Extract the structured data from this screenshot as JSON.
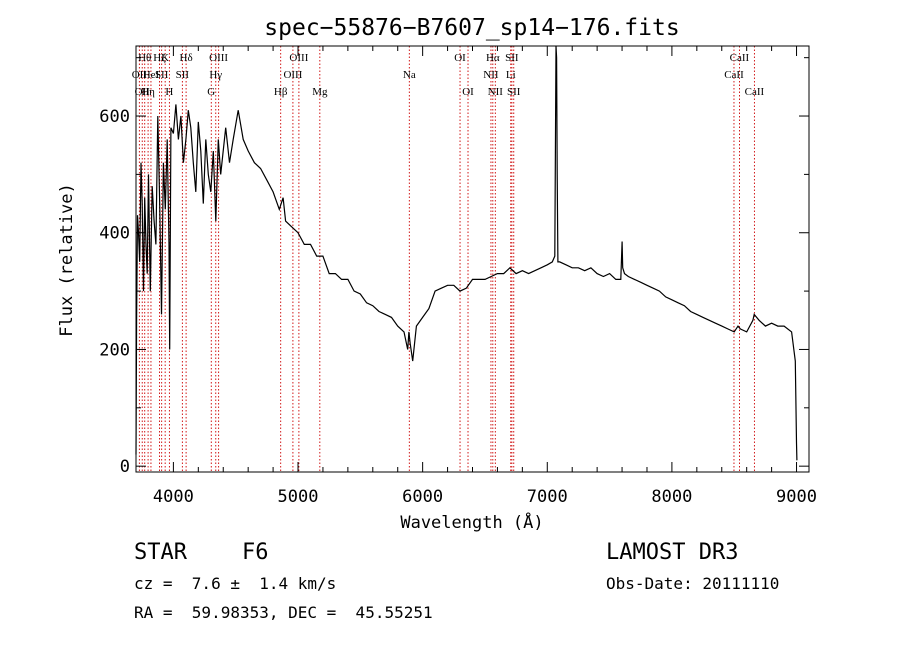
{
  "chart_data": {
    "type": "line",
    "title": "spec−55876−B7607_sp14−176.fits",
    "xlabel": "Wavelength (Å)",
    "ylabel": "Flux (relative)",
    "xlim": [
      3700,
      9100
    ],
    "ylim": [
      -10,
      720
    ],
    "x_ticks": [
      4000,
      5000,
      6000,
      7000,
      8000,
      9000
    ],
    "y_ticks": [
      0,
      200,
      400,
      600
    ],
    "grid": false,
    "series": [
      {
        "name": "spectrum",
        "x": [
          3700,
          3705,
          3712,
          3720,
          3730,
          3740,
          3750,
          3760,
          3770,
          3780,
          3790,
          3800,
          3815,
          3830,
          3845,
          3860,
          3875,
          3890,
          3905,
          3920,
          3935,
          3950,
          3965,
          3970,
          3980,
          4000,
          4020,
          4040,
          4060,
          4080,
          4100,
          4120,
          4140,
          4160,
          4180,
          4200,
          4220,
          4240,
          4260,
          4280,
          4300,
          4320,
          4340,
          4360,
          4380,
          4400,
          4420,
          4450,
          4480,
          4520,
          4560,
          4600,
          4650,
          4700,
          4750,
          4800,
          4850,
          4880,
          4900,
          4950,
          5000,
          5050,
          5100,
          5150,
          5200,
          5250,
          5300,
          5350,
          5400,
          5450,
          5500,
          5550,
          5600,
          5650,
          5700,
          5750,
          5800,
          5850,
          5880,
          5890,
          5900,
          5920,
          5950,
          6000,
          6050,
          6100,
          6150,
          6200,
          6250,
          6300,
          6350,
          6400,
          6450,
          6500,
          6550,
          6600,
          6650,
          6700,
          6750,
          6800,
          6850,
          6900,
          6950,
          7000,
          7040,
          7060,
          7070,
          7075,
          7080,
          7085,
          7100,
          7150,
          7200,
          7250,
          7300,
          7350,
          7400,
          7450,
          7500,
          7550,
          7590,
          7600,
          7605,
          7620,
          7650,
          7700,
          7750,
          7800,
          7850,
          7900,
          7950,
          8000,
          8050,
          8100,
          8150,
          8200,
          8250,
          8300,
          8350,
          8400,
          8450,
          8500,
          8530,
          8550,
          8600,
          8650,
          8660,
          8700,
          8750,
          8800,
          8850,
          8900,
          8960,
          8990,
          9000,
          9003
        ],
        "y": [
          20,
          250,
          430,
          400,
          350,
          520,
          450,
          300,
          460,
          380,
          330,
          500,
          300,
          480,
          420,
          380,
          600,
          450,
          260,
          520,
          440,
          560,
          380,
          200,
          580,
          570,
          620,
          560,
          600,
          520,
          560,
          610,
          580,
          520,
          470,
          590,
          540,
          450,
          560,
          500,
          470,
          540,
          420,
          560,
          500,
          540,
          580,
          520,
          560,
          610,
          560,
          540,
          520,
          510,
          490,
          470,
          440,
          460,
          420,
          410,
          400,
          380,
          380,
          360,
          360,
          330,
          330,
          320,
          320,
          300,
          295,
          280,
          275,
          265,
          260,
          255,
          240,
          230,
          200,
          230,
          210,
          180,
          240,
          255,
          270,
          300,
          305,
          310,
          310,
          300,
          305,
          320,
          320,
          320,
          325,
          330,
          330,
          340,
          330,
          335,
          330,
          335,
          340,
          345,
          350,
          360,
          720,
          700,
          500,
          350,
          350,
          345,
          340,
          340,
          335,
          340,
          330,
          325,
          330,
          320,
          320,
          385,
          340,
          330,
          325,
          320,
          315,
          310,
          305,
          300,
          290,
          285,
          280,
          275,
          265,
          260,
          255,
          250,
          245,
          240,
          235,
          230,
          240,
          235,
          230,
          250,
          260,
          250,
          240,
          245,
          240,
          240,
          230,
          180,
          40,
          10
        ]
      }
    ],
    "line_markers": [
      {
        "wavelength": 3727,
        "label": "OII",
        "row": 2
      },
      {
        "wavelength": 3750,
        "label": "OII",
        "row": 3
      },
      {
        "wavelength": 3770,
        "label": "Hθ",
        "row": 1
      },
      {
        "wavelength": 3797,
        "label": "Hη",
        "row": 3
      },
      {
        "wavelength": 3820,
        "label": "HeI",
        "row": 2
      },
      {
        "wavelength": 3889,
        "label": "Hζ",
        "row": 1
      },
      {
        "wavelength": 3906,
        "label": "SII",
        "row": 2
      },
      {
        "wavelength": 3934,
        "label": "K",
        "row": 1
      },
      {
        "wavelength": 3968,
        "label": "H",
        "row": 3
      },
      {
        "wavelength": 4072,
        "label": "SII",
        "row": 2
      },
      {
        "wavelength": 4102,
        "label": "Hδ",
        "row": 1
      },
      {
        "wavelength": 4304,
        "label": "G",
        "row": 3
      },
      {
        "wavelength": 4340,
        "label": "Hγ",
        "row": 2
      },
      {
        "wavelength": 4363,
        "label": "OIII",
        "row": 1
      },
      {
        "wavelength": 4861,
        "label": "Hβ",
        "row": 3
      },
      {
        "wavelength": 4959,
        "label": "OIII",
        "row": 2
      },
      {
        "wavelength": 5007,
        "label": "OIII",
        "row": 1
      },
      {
        "wavelength": 5175,
        "label": "Mg",
        "row": 3
      },
      {
        "wavelength": 5893,
        "label": "Na",
        "row": 2
      },
      {
        "wavelength": 6300,
        "label": "OI",
        "row": 1
      },
      {
        "wavelength": 6364,
        "label": "OI",
        "row": 3
      },
      {
        "wavelength": 6548,
        "label": "NII",
        "row": 2
      },
      {
        "wavelength": 6563,
        "label": "Hα",
        "row": 1
      },
      {
        "wavelength": 6583,
        "label": "NII",
        "row": 3
      },
      {
        "wavelength": 6707,
        "label": "Li",
        "row": 2
      },
      {
        "wavelength": 6716,
        "label": "SII",
        "row": 1
      },
      {
        "wavelength": 6731,
        "label": "SII",
        "row": 3
      },
      {
        "wavelength": 8498,
        "label": "CaII",
        "row": 2
      },
      {
        "wavelength": 8542,
        "label": "CaII",
        "row": 1
      },
      {
        "wavelength": 8662,
        "label": "CaII",
        "row": 3
      }
    ]
  },
  "info": {
    "object_class": "STAR",
    "subclass": "F6",
    "redshift": "cz =  7.6 ±  1.4 km/s",
    "coords": "RA =  59.98353, DEC =  45.55251",
    "survey": "LAMOST DR3",
    "obs_date": "Obs-Date: 20111110"
  },
  "colors": {
    "line": "#000000",
    "marker": "#cc0000",
    "axes": "#000000"
  }
}
